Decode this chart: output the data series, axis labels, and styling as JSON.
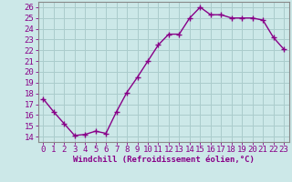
{
  "x": [
    0,
    1,
    2,
    3,
    4,
    5,
    6,
    7,
    8,
    9,
    10,
    11,
    12,
    13,
    14,
    15,
    16,
    17,
    18,
    19,
    20,
    21,
    22,
    23
  ],
  "y": [
    17.5,
    16.3,
    15.2,
    14.1,
    14.2,
    14.5,
    14.3,
    16.3,
    18.1,
    19.5,
    21.0,
    22.5,
    23.5,
    23.5,
    25.0,
    26.0,
    25.3,
    25.3,
    25.0,
    25.0,
    25.0,
    24.8,
    23.2,
    22.1
  ],
  "line_color": "#880088",
  "marker": "+",
  "marker_size": 4,
  "bg_color": "#cce8e8",
  "grid_color": "#aacccc",
  "xlabel": "Windchill (Refroidissement éolien,°C)",
  "ytick_labels": [
    "14",
    "15",
    "16",
    "17",
    "18",
    "19",
    "20",
    "21",
    "22",
    "23",
    "24",
    "25",
    "26"
  ],
  "ytick_vals": [
    14,
    15,
    16,
    17,
    18,
    19,
    20,
    21,
    22,
    23,
    24,
    25,
    26
  ],
  "xlim": [
    -0.5,
    23.5
  ],
  "ylim": [
    13.5,
    26.5
  ],
  "xlabel_fontsize": 6.5,
  "tick_fontsize": 6.5,
  "line_width": 1.0,
  "text_color": "#880088",
  "spine_color": "#888888"
}
